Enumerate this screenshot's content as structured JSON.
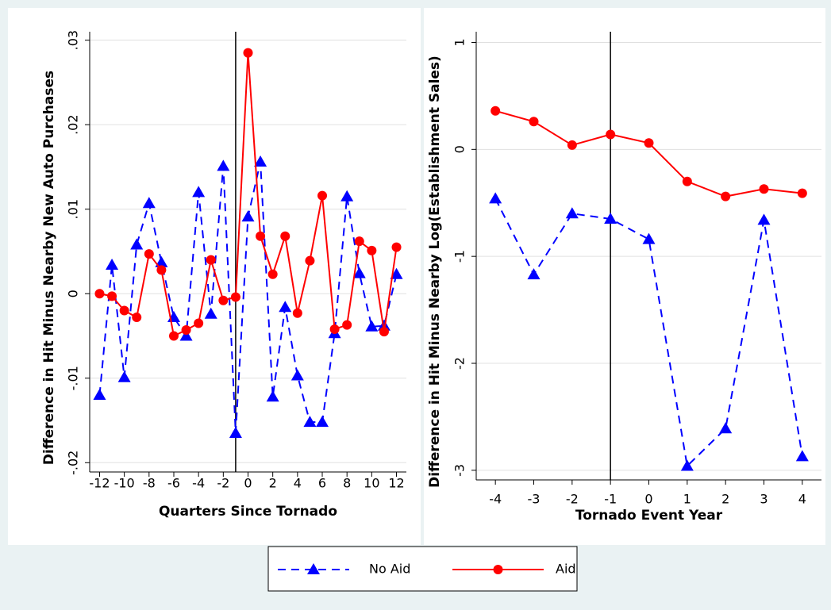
{
  "chart_data": [
    {
      "type": "line",
      "x_label": "Quarters Since Tornado",
      "y_label": "Difference in Hit Minus Nearby New Auto Purchases",
      "x": [
        -12,
        -11,
        -10,
        -9,
        -8,
        -7,
        -6,
        -5,
        -4,
        -3,
        -2,
        -1,
        0,
        1,
        2,
        3,
        4,
        5,
        6,
        7,
        8,
        9,
        10,
        11,
        12
      ],
      "xlim": [
        -12.8,
        12.8
      ],
      "xticks": [
        -12,
        -10,
        -8,
        -6,
        -4,
        -2,
        0,
        2,
        4,
        6,
        8,
        10,
        12
      ],
      "ylim": [
        -0.0211,
        0.031
      ],
      "yticks": [
        {
          "value": -0.02,
          "label": "-.02"
        },
        {
          "value": -0.01,
          "label": "-.01"
        },
        0,
        {
          "value": 0.01,
          "label": ".01"
        },
        {
          "value": 0.02,
          "label": ".02"
        },
        {
          "value": 0.03,
          "label": ".03"
        }
      ],
      "grid": true,
      "vline": -1,
      "series": [
        {
          "name": "No Aid",
          "color": "#0000ff",
          "marker": "triangle",
          "dashed": true,
          "values": [
            -0.012,
            0.0034,
            -0.0099,
            0.0058,
            0.0107,
            0.0037,
            -0.0028,
            -0.005,
            0.012,
            -0.0024,
            0.0151,
            -0.0165,
            0.0091,
            0.0156,
            -0.0122,
            -0.0016,
            -0.0097,
            -0.0152,
            -0.0152,
            -0.0047,
            0.0115,
            0.0024,
            -0.0039,
            -0.0038,
            0.0023
          ]
        },
        {
          "name": "Aid",
          "color": "#ff0000",
          "marker": "circle",
          "dashed": false,
          "values": [
            0,
            -0.0003,
            -0.002,
            -0.0028,
            0.0047,
            0.0028,
            -0.005,
            -0.0043,
            -0.0035,
            0.004,
            -0.0008,
            -0.0004,
            0.0285,
            0.0068,
            0.0023,
            0.0068,
            -0.0023,
            0.0039,
            0.0116,
            -0.0042,
            -0.0037,
            0.0062,
            0.0051,
            -0.0045,
            0.0055
          ]
        }
      ]
    },
    {
      "type": "line",
      "x_label": "Tornado Event Year",
      "y_label": "Difference in Hit Minus Nearby Log(Establishment Sales)",
      "x": [
        -4,
        -3,
        -2,
        -1,
        0,
        1,
        2,
        3,
        4
      ],
      "xlim": [
        -4.5,
        4.5
      ],
      "xticks": [
        -4,
        -3,
        -2,
        -1,
        0,
        1,
        2,
        3,
        4
      ],
      "ylim": [
        -3.09,
        1.1
      ],
      "yticks": [
        -3,
        -2,
        -1,
        0,
        1
      ],
      "grid": true,
      "vline": -1,
      "series": [
        {
          "color": "#0000ff",
          "marker": "triangle",
          "dashed": true,
          "values": [
            -0.46,
            -1.17,
            -0.6,
            -0.65,
            -0.84,
            -2.96,
            -2.61,
            -0.66,
            -2.87
          ]
        },
        {
          "color": "#ff0000",
          "marker": "circle",
          "dashed": false,
          "values": [
            0.36,
            0.26,
            0.04,
            0.14,
            0.06,
            -0.3,
            -0.44,
            -0.37,
            -0.41
          ]
        }
      ]
    }
  ]
}
